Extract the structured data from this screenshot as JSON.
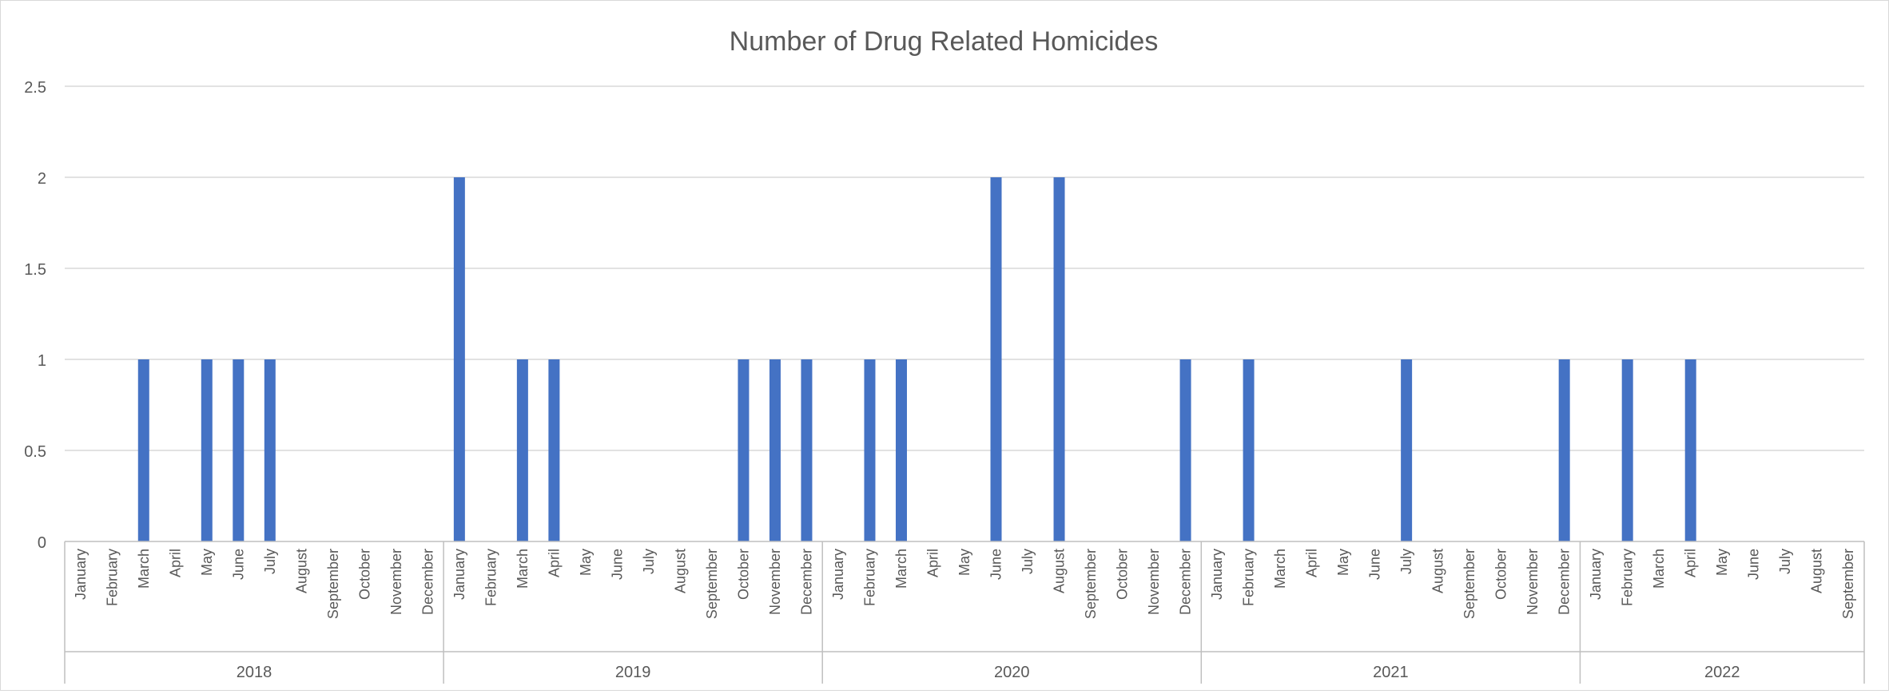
{
  "chart_data": {
    "type": "bar",
    "title": "Number of Drug Related Homicides",
    "xlabel": "",
    "ylabel": "",
    "ylim": [
      0,
      2.5
    ],
    "y_ticks": [
      "0",
      "0.5",
      "1",
      "1.5",
      "2",
      "2.5"
    ],
    "grid": true,
    "legend": "none",
    "colors": {
      "bar": "#4472C4",
      "grid": "#d9d9d9",
      "text": "#595959",
      "axis": "#bfbfbf"
    },
    "groups": [
      {
        "label": "2018",
        "categories": [
          "January",
          "February",
          "March",
          "April",
          "May",
          "June",
          "July",
          "August",
          "September",
          "October",
          "November",
          "December"
        ],
        "values": [
          0,
          0,
          1,
          0,
          1,
          1,
          1,
          0,
          0,
          0,
          0,
          0
        ]
      },
      {
        "label": "2019",
        "categories": [
          "January",
          "February",
          "March",
          "April",
          "May",
          "June",
          "July",
          "August",
          "September",
          "October",
          "November",
          "December"
        ],
        "values": [
          2,
          0,
          1,
          1,
          0,
          0,
          0,
          0,
          0,
          1,
          1,
          1
        ]
      },
      {
        "label": "2020",
        "categories": [
          "January",
          "February",
          "March",
          "April",
          "May",
          "June",
          "July",
          "August",
          "September",
          "October",
          "November",
          "December"
        ],
        "values": [
          0,
          1,
          1,
          0,
          0,
          2,
          0,
          2,
          0,
          0,
          0,
          1
        ]
      },
      {
        "label": "2021",
        "categories": [
          "January",
          "February",
          "March",
          "April",
          "May",
          "June",
          "July",
          "August",
          "September",
          "October",
          "November",
          "December"
        ],
        "values": [
          0,
          1,
          0,
          0,
          0,
          0,
          1,
          0,
          0,
          0,
          0,
          1
        ]
      },
      {
        "label": "2022",
        "categories": [
          "January",
          "February",
          "March",
          "April",
          "May",
          "June",
          "July",
          "August",
          "September"
        ],
        "values": [
          0,
          1,
          0,
          1,
          0,
          0,
          0,
          0,
          0
        ]
      }
    ]
  }
}
